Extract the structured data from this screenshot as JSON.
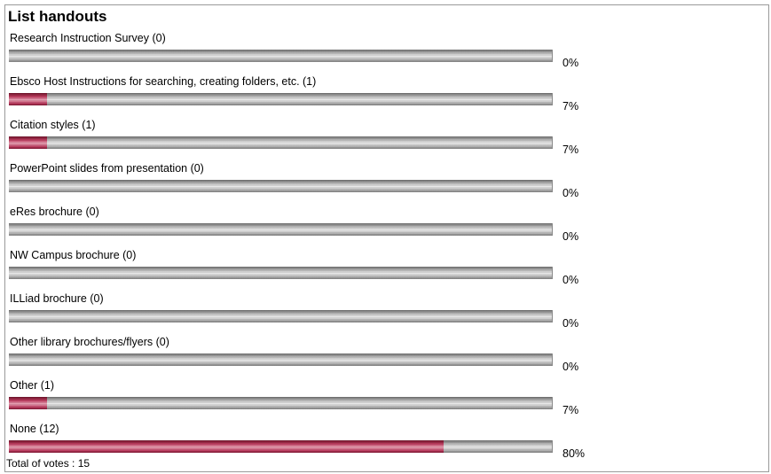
{
  "poll": {
    "title": "List handouts",
    "total_label": "Total of votes : 15",
    "bar_colors": {
      "filled": "#b8355a",
      "empty": "#bdbdbd"
    },
    "options": [
      {
        "label": "Research Instruction Survey (0)",
        "percent_label": "0%",
        "percent": 0
      },
      {
        "label": "Ebsco Host Instructions for searching, creating folders, etc. (1)",
        "percent_label": "7%",
        "percent": 7
      },
      {
        "label": "Citation styles (1)",
        "percent_label": "7%",
        "percent": 7
      },
      {
        "label": "PowerPoint slides from presentation (0)",
        "percent_label": "0%",
        "percent": 0
      },
      {
        "label": "eRes brochure (0)",
        "percent_label": "0%",
        "percent": 0
      },
      {
        "label": "NW Campus brochure (0)",
        "percent_label": "0%",
        "percent": 0
      },
      {
        "label": "ILLiad brochure (0)",
        "percent_label": "0%",
        "percent": 0
      },
      {
        "label": "Other library brochures/flyers (0)",
        "percent_label": "0%",
        "percent": 0
      },
      {
        "label": "Other (1)",
        "percent_label": "7%",
        "percent": 7
      },
      {
        "label": "None (12)",
        "percent_label": "80%",
        "percent": 80
      }
    ]
  }
}
